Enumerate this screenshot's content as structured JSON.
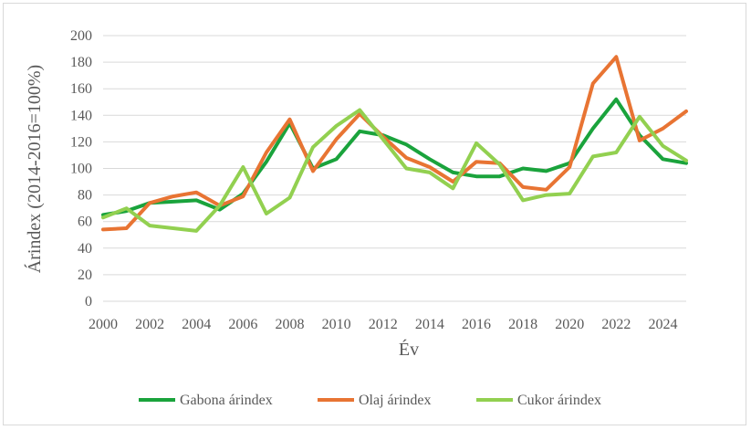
{
  "chart_data": {
    "type": "line",
    "title": "",
    "xlabel": "Év",
    "ylabel": "Árindex (2014-2016=100%)",
    "ylim": [
      0,
      200
    ],
    "xlim": [
      2000,
      2025
    ],
    "yticks": [
      0,
      20,
      40,
      60,
      80,
      100,
      120,
      140,
      160,
      180,
      200
    ],
    "xticks": [
      2000,
      2002,
      2004,
      2006,
      2008,
      2010,
      2012,
      2014,
      2016,
      2018,
      2020,
      2022,
      2024
    ],
    "grid": "horizontal",
    "legend_position": "bottom",
    "x": [
      2000,
      2001,
      2002,
      2003,
      2004,
      2005,
      2006,
      2007,
      2008,
      2009,
      2010,
      2011,
      2012,
      2013,
      2014,
      2015,
      2016,
      2017,
      2018,
      2019,
      2020,
      2021,
      2022,
      2023,
      2024,
      2025
    ],
    "series": [
      {
        "name": "Gabona árindex",
        "color": "#1aa33c",
        "values": [
          65,
          68,
          74,
          75,
          76,
          69,
          81,
          105,
          134,
          100,
          107,
          128,
          125,
          118,
          107,
          97,
          94,
          94,
          100,
          98,
          104,
          130,
          152,
          125,
          107,
          104
        ]
      },
      {
        "name": "Olaj árindex",
        "color": "#e87433",
        "values": [
          54,
          55,
          74,
          79,
          82,
          72,
          79,
          112,
          137,
          98,
          122,
          141,
          124,
          108,
          101,
          90,
          105,
          104,
          86,
          84,
          101,
          164,
          184,
          121,
          130,
          143
        ]
      },
      {
        "name": "Cukor árindex",
        "color": "#92d050",
        "values": [
          63,
          70,
          57,
          55,
          53,
          72,
          101,
          66,
          78,
          116,
          132,
          144,
          122,
          100,
          97,
          85,
          119,
          103,
          76,
          80,
          81,
          109,
          112,
          139,
          117,
          106
        ]
      }
    ]
  }
}
